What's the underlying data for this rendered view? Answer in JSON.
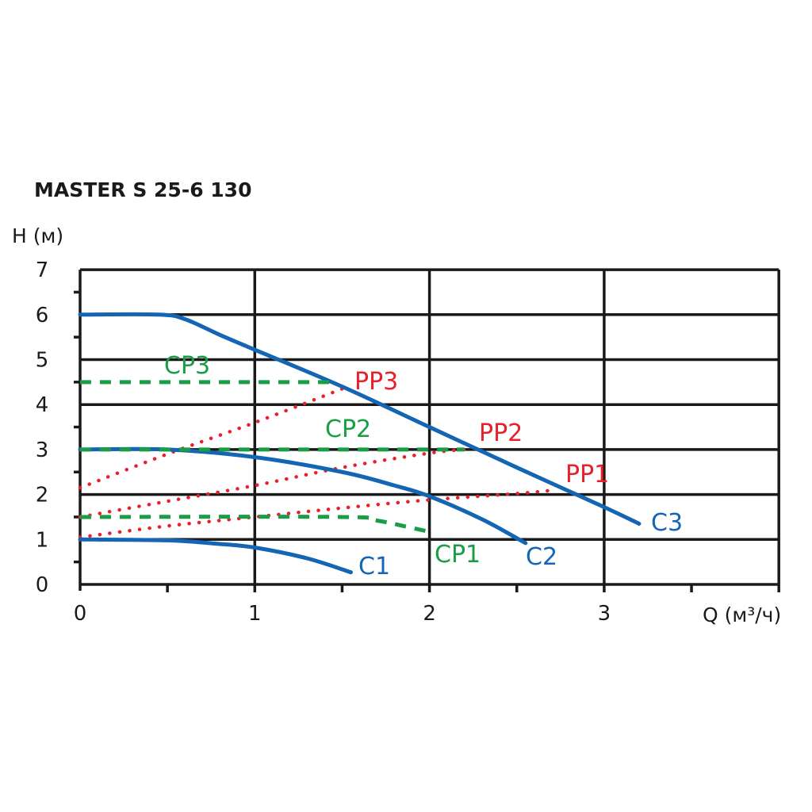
{
  "chart_data": {
    "type": "line",
    "title": "MASTER S 25-6 130",
    "xlabel": "Q (м³/ч)",
    "ylabel": "H (м)",
    "xlim": [
      0,
      4
    ],
    "ylim": [
      0,
      7
    ],
    "x_ticks": [
      "0",
      "1",
      "2",
      "3"
    ],
    "y_ticks": [
      "0",
      "1",
      "2",
      "3",
      "4",
      "5",
      "6",
      "7"
    ],
    "grid": true,
    "series": [
      {
        "name": "C3",
        "style": "solid",
        "color": "#1565b5",
        "points": [
          [
            0,
            6
          ],
          [
            0.45,
            6
          ],
          [
            0.6,
            5.9
          ],
          [
            0.8,
            5.55
          ],
          [
            1,
            5.22
          ],
          [
            1.5,
            4.4
          ],
          [
            2,
            3.5
          ],
          [
            2.5,
            2.6
          ],
          [
            3,
            1.72
          ],
          [
            3.2,
            1.35
          ]
        ]
      },
      {
        "name": "C2",
        "style": "solid",
        "color": "#1565b5",
        "points": [
          [
            0,
            3
          ],
          [
            0.5,
            3
          ],
          [
            1,
            2.83
          ],
          [
            1.5,
            2.5
          ],
          [
            1.8,
            2.2
          ],
          [
            2,
            1.96
          ],
          [
            2.3,
            1.45
          ],
          [
            2.55,
            0.92
          ]
        ]
      },
      {
        "name": "C1",
        "style": "solid",
        "color": "#1565b5",
        "points": [
          [
            0,
            1
          ],
          [
            0.5,
            0.98
          ],
          [
            0.8,
            0.9
          ],
          [
            1,
            0.82
          ],
          [
            1.3,
            0.58
          ],
          [
            1.55,
            0.27
          ]
        ]
      },
      {
        "name": "CP3",
        "style": "dashed",
        "color": "#1a9e45",
        "points": [
          [
            0,
            4.5
          ],
          [
            1.45,
            4.5
          ]
        ]
      },
      {
        "name": "CP2",
        "style": "dashed",
        "color": "#1a9e45",
        "points": [
          [
            0,
            3
          ],
          [
            2.2,
            3
          ]
        ]
      },
      {
        "name": "CP1",
        "style": "dashed",
        "color": "#1a9e45",
        "points": [
          [
            0,
            1.5
          ],
          [
            1.5,
            1.5
          ],
          [
            1.7,
            1.42
          ],
          [
            1.85,
            1.3
          ],
          [
            2,
            1.17
          ]
        ]
      },
      {
        "name": "PP3",
        "style": "dotted",
        "color": "#e8202a",
        "points": [
          [
            0,
            2.15
          ],
          [
            0.5,
            2.9
          ],
          [
            1,
            3.6
          ],
          [
            1.5,
            4.35
          ]
        ]
      },
      {
        "name": "PP2",
        "style": "dotted",
        "color": "#e8202a",
        "points": [
          [
            0,
            1.5
          ],
          [
            0.5,
            1.85
          ],
          [
            1,
            2.2
          ],
          [
            1.5,
            2.6
          ],
          [
            2,
            2.92
          ],
          [
            2.2,
            3.0
          ]
        ]
      },
      {
        "name": "PP1",
        "style": "dotted",
        "color": "#e8202a",
        "points": [
          [
            0,
            1.05
          ],
          [
            0.5,
            1.3
          ],
          [
            1,
            1.5
          ],
          [
            1.5,
            1.7
          ],
          [
            2,
            1.88
          ],
          [
            2.5,
            2.02
          ],
          [
            2.72,
            2.1
          ]
        ]
      }
    ]
  }
}
